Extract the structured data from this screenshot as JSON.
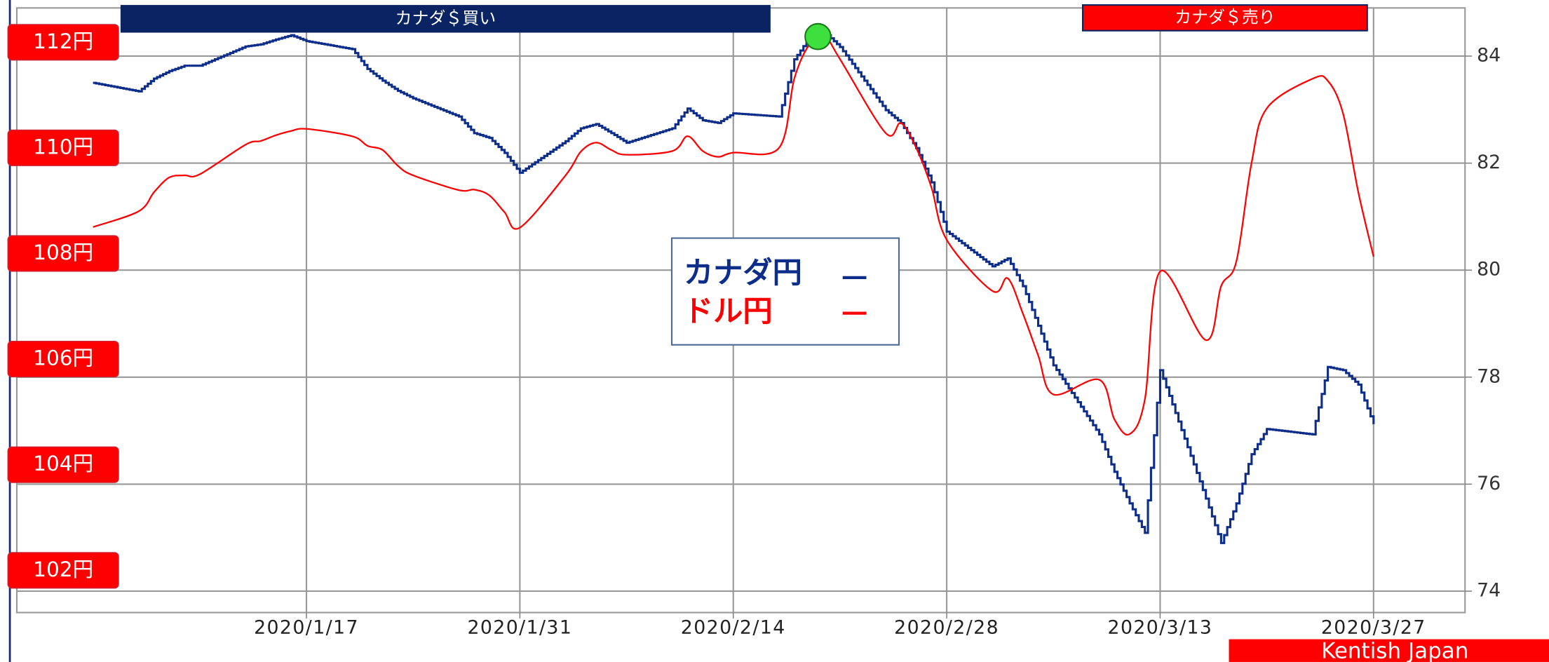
{
  "chart_data": {
    "type": "line",
    "header_left": "カナダ＄買い",
    "header_right": "カナダ＄売り",
    "footer": "Kentish Japan",
    "x": [
      "2020/1/3",
      "2020/1/6",
      "2020/1/7",
      "2020/1/8",
      "2020/1/9",
      "2020/1/10",
      "2020/1/13",
      "2020/1/14",
      "2020/1/15",
      "2020/1/16",
      "2020/1/17",
      "2020/1/20",
      "2020/1/21",
      "2020/1/22",
      "2020/1/23",
      "2020/1/24",
      "2020/1/27",
      "2020/1/28",
      "2020/1/29",
      "2020/1/30",
      "2020/1/31",
      "2020/2/3",
      "2020/2/4",
      "2020/2/5",
      "2020/2/6",
      "2020/2/7",
      "2020/2/10",
      "2020/2/11",
      "2020/2/12",
      "2020/2/13",
      "2020/2/14",
      "2020/2/17",
      "2020/2/18",
      "2020/2/19",
      "2020/2/20",
      "2020/2/21",
      "2020/2/24",
      "2020/2/25",
      "2020/2/26",
      "2020/2/27",
      "2020/2/28",
      "2020/3/2",
      "2020/3/3",
      "2020/3/4",
      "2020/3/5",
      "2020/3/6",
      "2020/3/9",
      "2020/3/10",
      "2020/3/11",
      "2020/3/12",
      "2020/3/13",
      "2020/3/16",
      "2020/3/17",
      "2020/3/18",
      "2020/3/19",
      "2020/3/20",
      "2020/3/23",
      "2020/3/24",
      "2020/3/25",
      "2020/3/26",
      "2020/3/27"
    ],
    "series": [
      {
        "name": "カナダ円",
        "color": "#0d2d8a",
        "axis": "y2",
        "step": true,
        "values": [
          83.5,
          83.34,
          83.58,
          83.72,
          83.82,
          83.82,
          84.18,
          84.22,
          84.31,
          84.39,
          84.28,
          84.13,
          83.76,
          83.54,
          83.35,
          83.21,
          82.87,
          82.56,
          82.47,
          82.19,
          81.82,
          82.41,
          82.65,
          82.73,
          82.56,
          82.38,
          82.65,
          83.02,
          82.8,
          82.75,
          82.93,
          82.87,
          83.94,
          84.35,
          84.44,
          84.17,
          82.99,
          82.75,
          82.28,
          81.64,
          80.72,
          80.07,
          80.22,
          79.7,
          78.96,
          78.22,
          76.93,
          76.23,
          75.64,
          75.09,
          78.13,
          75.73,
          74.9,
          75.64,
          76.56,
          77.03,
          76.93,
          78.19,
          78.13,
          77.86,
          77.12
        ]
      },
      {
        "name": "ドル円",
        "color": "#ff0000",
        "axis": "y",
        "values": [
          108.5,
          108.8,
          109.16,
          109.44,
          109.48,
          109.5,
          110.06,
          110.13,
          110.24,
          110.32,
          110.36,
          110.22,
          110.04,
          109.96,
          109.66,
          109.48,
          109.2,
          109.21,
          109.1,
          108.78,
          108.49,
          109.48,
          109.93,
          110.1,
          109.96,
          109.87,
          109.94,
          110.22,
          109.94,
          109.83,
          109.91,
          110.0,
          111.31,
          111.96,
          112.11,
          111.68,
          110.28,
          110.47,
          110.0,
          109.25,
          108.26,
          107.29,
          107.53,
          106.86,
          106.07,
          105.33,
          105.61,
          104.86,
          104.58,
          105.24,
          107.66,
          106.36,
          107.38,
          107.85,
          109.72,
          110.75,
          111.31,
          111.27,
          110.65,
          109.16,
          107.94
        ]
      }
    ],
    "xlim": [
      "2019/12/29",
      "2020/4/2"
    ],
    "xticks": [
      "2020/1/17",
      "2020/1/31",
      "2020/2/14",
      "2020/2/28",
      "2020/3/13",
      "2020/3/27"
    ],
    "ylim": [
      101.2,
      112.65
    ],
    "yticks": [
      {
        "value": 102,
        "label": "102円"
      },
      {
        "value": 104,
        "label": "104円"
      },
      {
        "value": 106,
        "label": "106円"
      },
      {
        "value": 108,
        "label": "108円"
      },
      {
        "value": 110,
        "label": "110円"
      },
      {
        "value": 112,
        "label": "112円"
      }
    ],
    "y2lim": [
      73.6,
      84.9
    ],
    "y2ticks": [
      74,
      76,
      78,
      80,
      82,
      84
    ],
    "grid": true
  }
}
